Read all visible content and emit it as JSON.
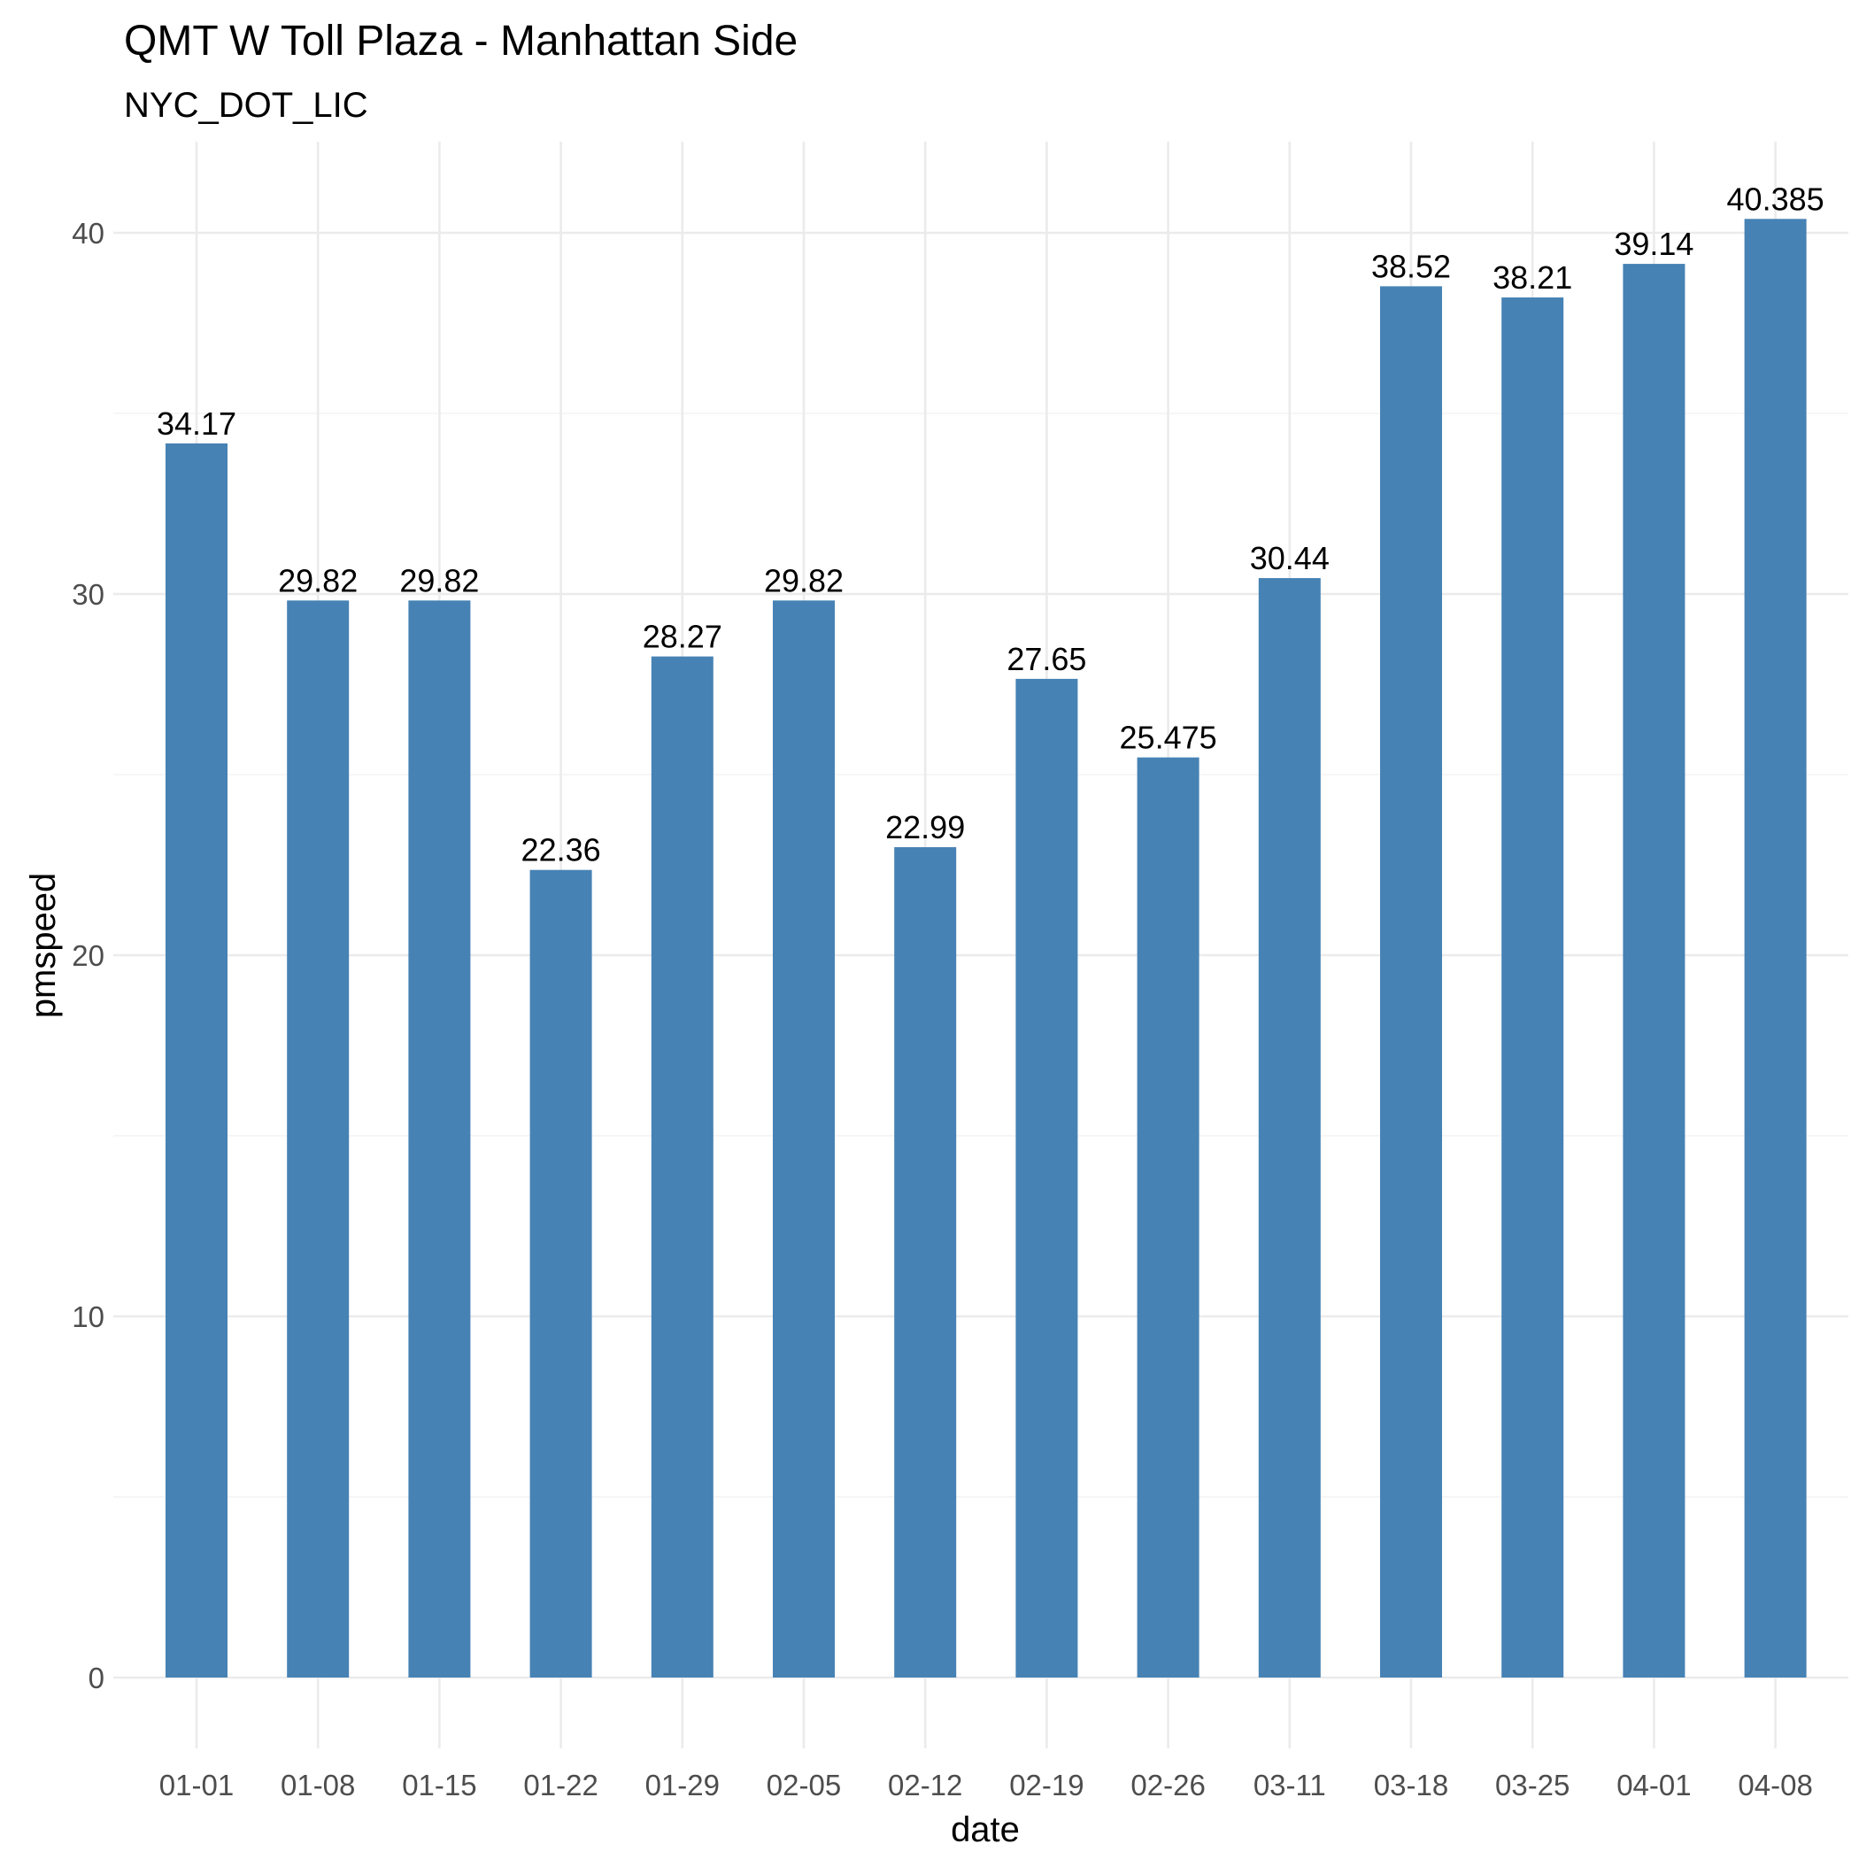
{
  "chart_data": {
    "type": "bar",
    "title": "QMT W Toll Plaza - Manhattan Side",
    "subtitle": "NYC_DOT_LIC",
    "xlabel": "date",
    "ylabel": "pmspeed",
    "categories": [
      "01-01",
      "01-08",
      "01-15",
      "01-22",
      "01-29",
      "02-05",
      "02-12",
      "02-19",
      "02-26",
      "03-11",
      "03-18",
      "03-25",
      "04-01",
      "04-08"
    ],
    "values": [
      34.17,
      29.82,
      29.82,
      22.36,
      28.27,
      29.82,
      22.99,
      27.65,
      25.475,
      30.44,
      38.52,
      38.21,
      39.14,
      40.385
    ],
    "data_labels": [
      "34.17",
      "29.82",
      "29.82",
      "22.36",
      "28.27",
      "29.82",
      "22.99",
      "27.65",
      "25.475",
      "30.44",
      "38.52",
      "38.21",
      "39.14",
      "40.385"
    ],
    "y_ticks": [
      0,
      10,
      20,
      30,
      40
    ],
    "y_tick_labels": [
      "0",
      "10",
      "20",
      "30",
      "40"
    ],
    "ylim": [
      0,
      42.4
    ],
    "grid": true,
    "legend": "none",
    "bar_color": "#4682b4",
    "background": "#ffffff"
  }
}
